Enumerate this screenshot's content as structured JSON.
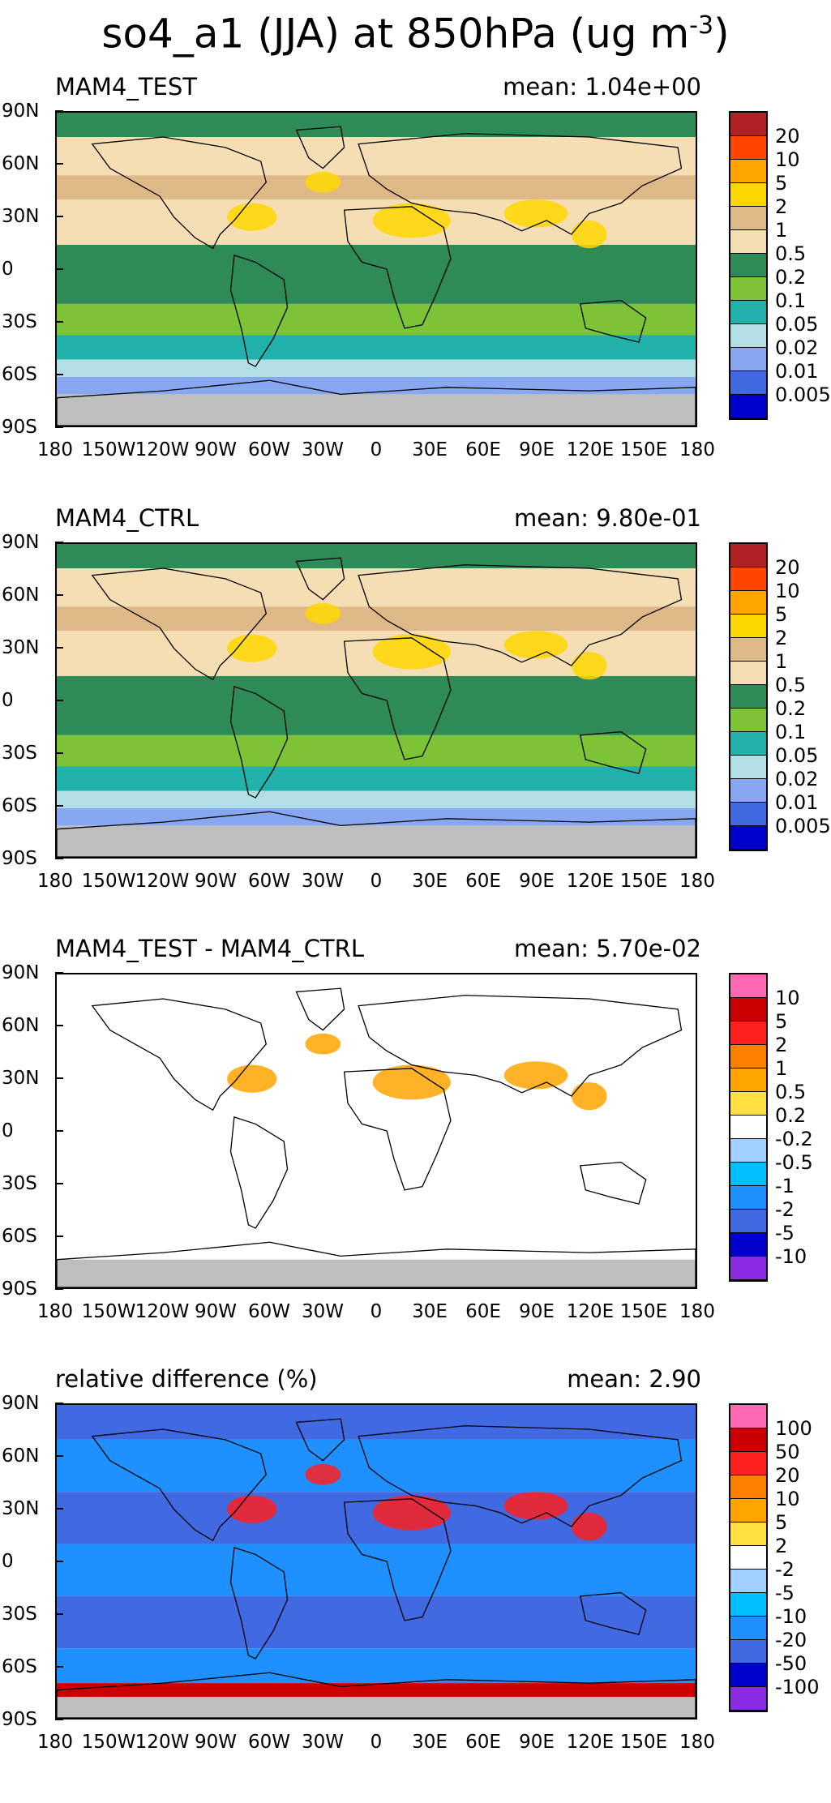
{
  "title": {
    "main": "so4_a1 (JJA) at 850hPa (ug m",
    "exp": "-3",
    "close": ")"
  },
  "lat_labels": [
    "90N",
    "60N",
    "30N",
    "0",
    "30S",
    "60S",
    "90S"
  ],
  "lon_labels": [
    "180",
    "150W",
    "120W",
    "90W",
    "60W",
    "30W",
    "0",
    "30E",
    "60E",
    "90E",
    "120E",
    "150E",
    "180"
  ],
  "panels": [
    {
      "left_label": "MAM4_TEST",
      "right_label": "mean: 1.04e+00",
      "scale": "abs",
      "colorbar_labels": [
        "20",
        "10",
        "5",
        "2",
        "1",
        "0.5",
        "0.2",
        "0.1",
        "0.05",
        "0.02",
        "0.01",
        "0.005"
      ]
    },
    {
      "left_label": "MAM4_CTRL",
      "right_label": "mean: 9.80e-01",
      "scale": "abs",
      "colorbar_labels": [
        "20",
        "10",
        "5",
        "2",
        "1",
        "0.5",
        "0.2",
        "0.1",
        "0.05",
        "0.02",
        "0.01",
        "0.005"
      ]
    },
    {
      "left_label": "MAM4_TEST - MAM4_CTRL",
      "right_label": "mean: 5.70e-02",
      "scale": "diff",
      "colorbar_labels": [
        "10",
        "5",
        "2",
        "1",
        "0.5",
        "0.2",
        "-0.2",
        "-0.5",
        "-1",
        "-2",
        "-5",
        "-10"
      ]
    },
    {
      "left_label": "relative difference (%)",
      "right_label": "mean:  2.90",
      "scale": "rel",
      "colorbar_labels": [
        "100",
        "50",
        "20",
        "10",
        "5",
        "2",
        "-2",
        "-5",
        "-10",
        "-20",
        "-50",
        "-100"
      ]
    }
  ],
  "colors": {
    "abs": [
      "#b22222",
      "#ff4500",
      "#ffa500",
      "#ffd700",
      "#deb887",
      "#f5deb3",
      "#2e8b57",
      "#7cc436",
      "#20b2aa",
      "#b0e0e6",
      "#87a7f0",
      "#4169e1",
      "#0000cd"
    ],
    "diff": [
      "#ff69b4",
      "#cc0000",
      "#ff2020",
      "#ff7f00",
      "#ffa500",
      "#ffe040",
      "#ffffff",
      "#a0d0ff",
      "#00bfff",
      "#1e90ff",
      "#4169e1",
      "#0000cd",
      "#8a2be2"
    ],
    "land_missing": "#bebebe"
  }
}
